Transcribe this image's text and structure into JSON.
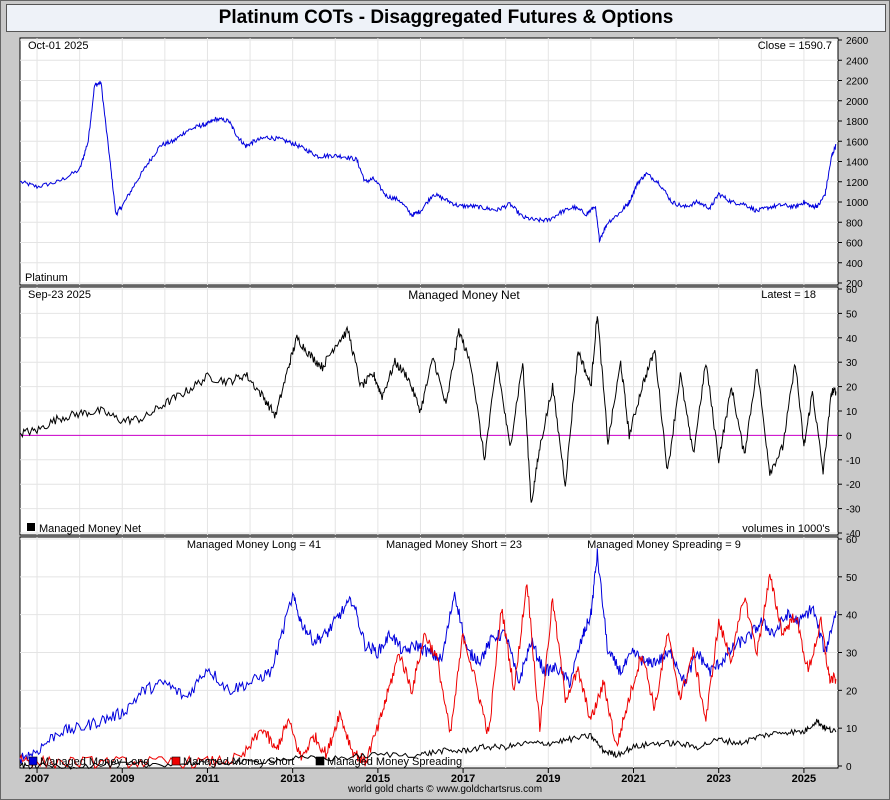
{
  "title": "Platinum COTs - Disaggregated Futures & Options",
  "footer": "world gold charts © www.goldchartsrus.com",
  "x_axis": {
    "labels": [
      "2007",
      "2009",
      "2011",
      "2013",
      "2015",
      "2017",
      "2019",
      "2021",
      "2023",
      "2025"
    ]
  },
  "chart_data": [
    {
      "type": "line",
      "panel": "price",
      "date_label": "Oct-01  2025",
      "close_label": "Close = 1590.7",
      "corner_label": "Platinum",
      "ylim": [
        200,
        2600
      ],
      "yticks": [
        200,
        400,
        600,
        800,
        1000,
        1200,
        1400,
        1600,
        1800,
        2000,
        2200,
        2400,
        2600
      ],
      "series": [
        {
          "color": "#0000dd",
          "x": [
            2006.6,
            2007.0,
            2007.5,
            2008.0,
            2008.2,
            2008.35,
            2008.5,
            2008.7,
            2008.85,
            2009.0,
            2009.3,
            2009.6,
            2009.9,
            2010.2,
            2010.5,
            2010.8,
            2011.0,
            2011.2,
            2011.5,
            2011.7,
            2011.9,
            2012.1,
            2012.4,
            2012.7,
            2013.0,
            2013.3,
            2013.6,
            2013.9,
            2014.2,
            2014.5,
            2014.7,
            2014.9,
            2015.2,
            2015.5,
            2015.8,
            2016.0,
            2016.3,
            2016.6,
            2016.9,
            2017.2,
            2017.5,
            2017.8,
            2018.1,
            2018.4,
            2018.7,
            2019.0,
            2019.3,
            2019.6,
            2019.9,
            2020.1,
            2020.2,
            2020.4,
            2020.7,
            2020.9,
            2021.1,
            2021.3,
            2021.6,
            2021.9,
            2022.2,
            2022.5,
            2022.8,
            2023.0,
            2023.3,
            2023.6,
            2023.9,
            2024.2,
            2024.5,
            2024.8,
            2025.0,
            2025.2,
            2025.35,
            2025.5,
            2025.65,
            2025.75
          ],
          "y": [
            1200,
            1150,
            1200,
            1320,
            1600,
            2150,
            2180,
            1450,
            880,
            960,
            1180,
            1380,
            1560,
            1600,
            1700,
            1750,
            1770,
            1820,
            1800,
            1650,
            1550,
            1600,
            1640,
            1620,
            1580,
            1520,
            1450,
            1460,
            1450,
            1420,
            1200,
            1230,
            1060,
            1020,
            870,
            910,
            1080,
            1020,
            960,
            960,
            940,
            920,
            980,
            850,
            820,
            820,
            900,
            950,
            880,
            960,
            630,
            800,
            900,
            1000,
            1190,
            1280,
            1190,
            1000,
            950,
            1000,
            940,
            1080,
            1000,
            980,
            910,
            950,
            970,
            950,
            1000,
            950,
            970,
            1080,
            1450,
            1560
          ]
        }
      ]
    },
    {
      "type": "line",
      "panel": "net",
      "title": "Managed Money Net",
      "date_label": "Sep-23  2025",
      "latest_label": "Latest = 18",
      "legend_label": "Managed Money Net",
      "units_label": "volumes in 1000's",
      "ylim": [
        -40,
        60
      ],
      "yticks": [
        -40,
        -30,
        -20,
        -10,
        0,
        10,
        20,
        30,
        40,
        50,
        60
      ],
      "zero_line_color": "#cc00cc",
      "series": [
        {
          "name": "Managed Money Net",
          "color": "#000000",
          "x": [
            2006.6,
            2007.0,
            2007.5,
            2008.0,
            2008.5,
            2009.0,
            2009.5,
            2010.0,
            2010.5,
            2011.0,
            2011.5,
            2011.9,
            2012.3,
            2012.6,
            2012.9,
            2013.1,
            2013.4,
            2013.7,
            2014.0,
            2014.3,
            2014.6,
            2014.9,
            2015.1,
            2015.4,
            2015.7,
            2016.0,
            2016.3,
            2016.6,
            2016.9,
            2017.2,
            2017.5,
            2017.8,
            2018.1,
            2018.4,
            2018.6,
            2018.8,
            2019.1,
            2019.4,
            2019.7,
            2020.0,
            2020.15,
            2020.4,
            2020.7,
            2020.9,
            2021.2,
            2021.5,
            2021.8,
            2022.1,
            2022.4,
            2022.7,
            2023.0,
            2023.3,
            2023.6,
            2023.9,
            2024.2,
            2024.5,
            2024.8,
            2025.0,
            2025.2,
            2025.45,
            2025.65,
            2025.75
          ],
          "y": [
            1,
            2,
            7,
            9,
            10,
            6,
            7,
            13,
            18,
            24,
            22,
            25,
            16,
            8,
            28,
            40,
            33,
            28,
            37,
            43,
            20,
            25,
            16,
            30,
            24,
            10,
            32,
            12,
            43,
            28,
            -10,
            30,
            -5,
            30,
            -28,
            -5,
            20,
            -20,
            35,
            20,
            50,
            -3,
            30,
            0,
            20,
            35,
            -15,
            25,
            -8,
            30,
            -10,
            20,
            -8,
            28,
            -15,
            -5,
            30,
            -5,
            18,
            -15,
            18,
            18
          ]
        }
      ]
    },
    {
      "type": "line",
      "panel": "positions",
      "ylim": [
        0,
        60
      ],
      "yticks": [
        0,
        10,
        20,
        30,
        40,
        50,
        60
      ],
      "top_labels": [
        "Managed Money Long = 41",
        "Managed Money Short = 23",
        "Managed Money Spreading = 9"
      ],
      "series": [
        {
          "name": "Managed Money Long",
          "color": "#0000dd",
          "x": [
            2006.6,
            2007.0,
            2007.5,
            2008.0,
            2008.5,
            2009.0,
            2009.5,
            2010.0,
            2010.5,
            2011.0,
            2011.5,
            2012.0,
            2012.5,
            2013.0,
            2013.2,
            2013.5,
            2013.8,
            2014.1,
            2014.4,
            2014.7,
            2015.0,
            2015.3,
            2015.6,
            2015.9,
            2016.2,
            2016.5,
            2016.8,
            2017.1,
            2017.4,
            2017.7,
            2018.0,
            2018.3,
            2018.6,
            2018.9,
            2019.2,
            2019.5,
            2019.8,
            2020.0,
            2020.15,
            2020.4,
            2020.7,
            2021.0,
            2021.3,
            2021.6,
            2021.9,
            2022.2,
            2022.5,
            2022.8,
            2023.1,
            2023.4,
            2023.7,
            2024.0,
            2024.3,
            2024.6,
            2024.9,
            2025.2,
            2025.5,
            2025.75
          ],
          "y": [
            2,
            4,
            9,
            10,
            12,
            14,
            20,
            22,
            18,
            26,
            20,
            22,
            25,
            45,
            38,
            33,
            35,
            40,
            44,
            32,
            30,
            35,
            30,
            32,
            30,
            28,
            46,
            30,
            28,
            34,
            35,
            22,
            33,
            25,
            26,
            22,
            34,
            40,
            56,
            30,
            25,
            30,
            27,
            28,
            30,
            22,
            30,
            25,
            28,
            32,
            34,
            38,
            35,
            40,
            38,
            42,
            30,
            41
          ]
        },
        {
          "name": "Managed Money Short",
          "color": "#ee0000",
          "x": [
            2006.6,
            2007.0,
            2008.0,
            2009.0,
            2010.0,
            2011.0,
            2011.8,
            2012.3,
            2012.6,
            2012.9,
            2013.2,
            2013.5,
            2013.8,
            2014.1,
            2014.4,
            2014.7,
            2015.0,
            2015.2,
            2015.5,
            2015.8,
            2016.1,
            2016.4,
            2016.7,
            2017.0,
            2017.3,
            2017.6,
            2017.9,
            2018.2,
            2018.5,
            2018.8,
            2019.1,
            2019.4,
            2019.7,
            2020.0,
            2020.3,
            2020.6,
            2020.9,
            2021.2,
            2021.5,
            2021.8,
            2022.1,
            2022.4,
            2022.7,
            2023.0,
            2023.3,
            2023.6,
            2023.9,
            2024.2,
            2024.5,
            2024.8,
            2025.1,
            2025.4,
            2025.6,
            2025.75
          ],
          "y": [
            2,
            1,
            1,
            1,
            1,
            1,
            2,
            10,
            4,
            12,
            2,
            8,
            3,
            14,
            4,
            1,
            10,
            18,
            30,
            20,
            35,
            28,
            8,
            35,
            22,
            8,
            42,
            20,
            49,
            10,
            44,
            18,
            25,
            12,
            22,
            5,
            18,
            30,
            15,
            35,
            18,
            30,
            12,
            38,
            28,
            45,
            30,
            50,
            35,
            40,
            25,
            38,
            23,
            23
          ]
        },
        {
          "name": "Managed Money Spreading",
          "color": "#000000",
          "x": [
            2006.6,
            2007.0,
            2008.0,
            2009.0,
            2010.0,
            2011.0,
            2012.0,
            2013.0,
            2014.0,
            2015.0,
            2016.0,
            2016.5,
            2017.0,
            2017.5,
            2018.0,
            2018.5,
            2019.0,
            2019.5,
            2020.0,
            2020.3,
            2020.6,
            2021.0,
            2021.5,
            2022.0,
            2022.5,
            2023.0,
            2023.5,
            2024.0,
            2024.5,
            2025.0,
            2025.3,
            2025.5,
            2025.75
          ],
          "y": [
            0,
            0,
            0,
            0.5,
            0.5,
            1,
            1,
            2,
            2,
            3,
            3,
            4,
            4,
            5,
            5,
            6,
            6,
            7,
            8,
            4,
            3,
            5,
            6,
            6,
            5,
            7,
            6,
            8,
            9,
            9,
            12,
            10,
            9
          ]
        }
      ]
    }
  ]
}
